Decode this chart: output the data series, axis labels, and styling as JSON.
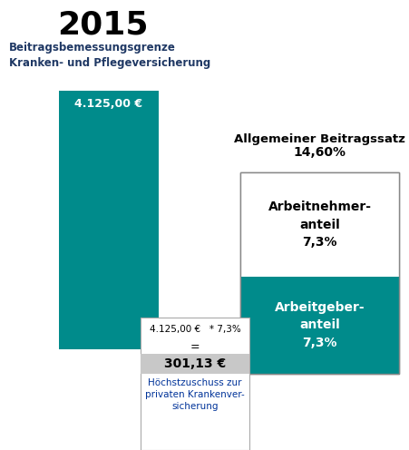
{
  "title": "2015",
  "subtitle": "Beitragsbemessungsgrenze\nKranken- und Pflegeversicherung",
  "bar1_label": "4.125,00 €",
  "bar1_color": "#008B8B",
  "allgemeiner_title": "Allgemeiner Beitragssatz",
  "total_pct": "14,60%",
  "an_label": "Arbeitnehmer-\nanteil\n7,3%",
  "ag_label": "Arbeitgeber-\nanteil\n7,3%",
  "ag_color": "#008B8B",
  "formula_line1": "4.125,00 €   * 7,3%",
  "formula_line2": "=",
  "result_value": "301,13 €",
  "result_label": "Höchstzuschuss zur\nprivaten Krankenver-\nsicherung",
  "result_bg": "#C8C8C8",
  "white": "#FFFFFF",
  "black": "#000000",
  "dark_blue": "#1F3864",
  "text_color": "#003399"
}
